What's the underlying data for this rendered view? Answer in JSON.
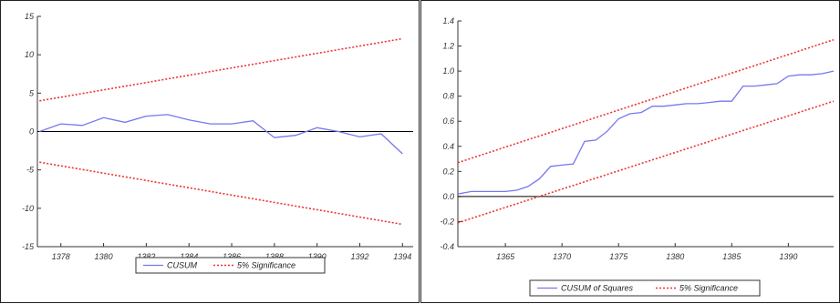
{
  "colors": {
    "series_line": "#7777ee",
    "band_line": "#ee3333",
    "axis": "#333333",
    "zero_line": "#000000",
    "frame": "#222222"
  },
  "chart_data": [
    {
      "type": "line",
      "title": "",
      "xlabel": "",
      "ylabel": "",
      "xlim": [
        1376.9,
        1394.5
      ],
      "ylim": [
        -15,
        15
      ],
      "xticks": [
        1378,
        1380,
        1382,
        1384,
        1386,
        1388,
        1390,
        1392,
        1394
      ],
      "yticks": [
        -15,
        -10,
        -5,
        0,
        5,
        10,
        15
      ],
      "grid": false,
      "zero_line": true,
      "legend_position": "bottom-center",
      "series": [
        {
          "name": "CUSUM",
          "style": "solid",
          "x": [
            1377,
            1378,
            1379,
            1380,
            1381,
            1382,
            1383,
            1384,
            1385,
            1386,
            1387,
            1388,
            1389,
            1390,
            1391,
            1392,
            1393,
            1394
          ],
          "y": [
            0,
            1.0,
            0.8,
            1.8,
            1.2,
            2.0,
            2.2,
            1.5,
            1.0,
            1.0,
            1.4,
            -0.8,
            -0.5,
            0.5,
            0.0,
            -0.7,
            -0.3,
            -2.9
          ]
        },
        {
          "name": "5% Significance",
          "style": "dotted",
          "x": [
            1377,
            1394
          ],
          "y": [
            4.0,
            12.1
          ]
        },
        {
          "name": "",
          "style": "dotted",
          "x": [
            1377,
            1394
          ],
          "y": [
            -4.0,
            -12.1
          ]
        }
      ]
    },
    {
      "type": "line",
      "title": "",
      "xlabel": "",
      "ylabel": "",
      "xlim": [
        1360.8,
        1394.0
      ],
      "ylim": [
        -0.4,
        1.4
      ],
      "xticks": [
        1365,
        1370,
        1375,
        1380,
        1385,
        1390
      ],
      "yticks": [
        -0.4,
        -0.2,
        0.0,
        0.2,
        0.4,
        0.6,
        0.8,
        1.0,
        1.2,
        1.4
      ],
      "grid": false,
      "zero_line": true,
      "legend_position": "bottom-center",
      "series": [
        {
          "name": "CUSUM of Squares",
          "style": "solid",
          "x": [
            1360.8,
            1362,
            1363,
            1364,
            1365,
            1366,
            1367,
            1368,
            1369,
            1370,
            1371,
            1372,
            1373,
            1374,
            1375,
            1376,
            1377,
            1378,
            1379,
            1380,
            1381,
            1382,
            1383,
            1384,
            1385,
            1386,
            1387,
            1388,
            1389,
            1390,
            1391,
            1392,
            1393,
            1394
          ],
          "y": [
            0.02,
            0.04,
            0.04,
            0.04,
            0.04,
            0.05,
            0.08,
            0.14,
            0.24,
            0.25,
            0.26,
            0.44,
            0.45,
            0.52,
            0.62,
            0.66,
            0.67,
            0.72,
            0.72,
            0.73,
            0.74,
            0.74,
            0.75,
            0.76,
            0.76,
            0.88,
            0.88,
            0.89,
            0.9,
            0.96,
            0.97,
            0.97,
            0.98,
            1.0
          ]
        },
        {
          "name": "5% Significance",
          "style": "dotted",
          "x": [
            1360.8,
            1394.0
          ],
          "y": [
            0.27,
            1.25
          ]
        },
        {
          "name": "",
          "style": "dotted",
          "x": [
            1360.8,
            1394.0
          ],
          "y": [
            -0.21,
            0.76
          ]
        }
      ]
    }
  ]
}
